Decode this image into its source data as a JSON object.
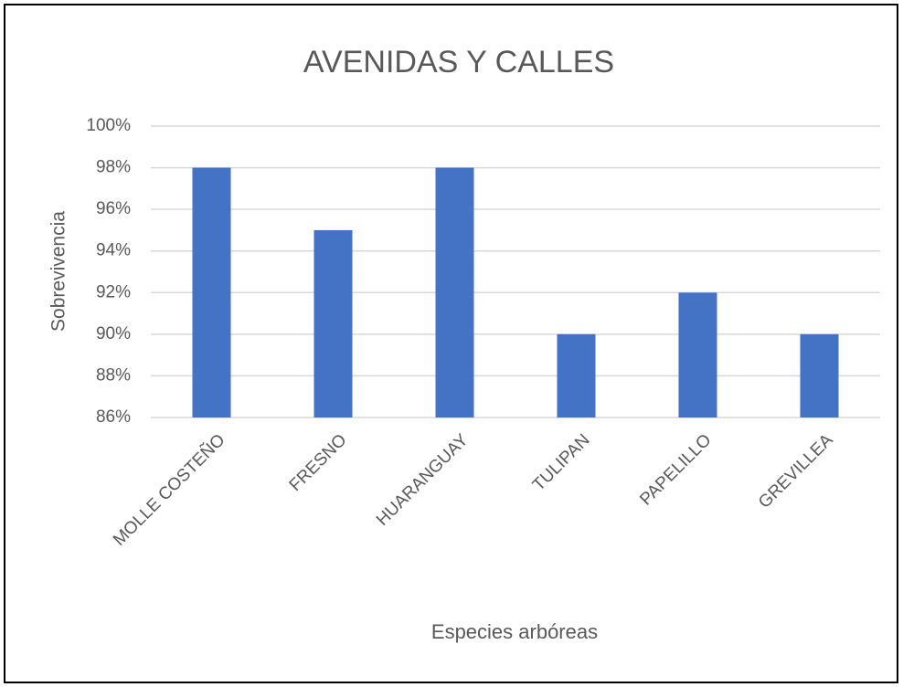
{
  "chart_data": {
    "type": "bar",
    "title": "AVENIDAS Y CALLES",
    "x_label": "Especies arbóreas",
    "y_label": "Sobrevivencia",
    "categories": [
      "MOLLE COSTEÑO",
      "FRESNO",
      "HUARANGUAY",
      "TULIPAN",
      "PAPELILLO",
      "GREVILLEA"
    ],
    "values": [
      98,
      95,
      98,
      90,
      92,
      90
    ],
    "color": "#4472c4",
    "ylim": [
      86,
      100
    ],
    "yticks": [
      {
        "value": 86,
        "label": "86%"
      },
      {
        "value": 88,
        "label": "88%"
      },
      {
        "value": 90,
        "label": "90%"
      },
      {
        "value": 92,
        "label": "92%"
      },
      {
        "value": 94,
        "label": "94%"
      },
      {
        "value": 96,
        "label": "96%"
      },
      {
        "value": 98,
        "label": "98%"
      },
      {
        "value": 100,
        "label": "100%"
      }
    ],
    "grid": true
  }
}
